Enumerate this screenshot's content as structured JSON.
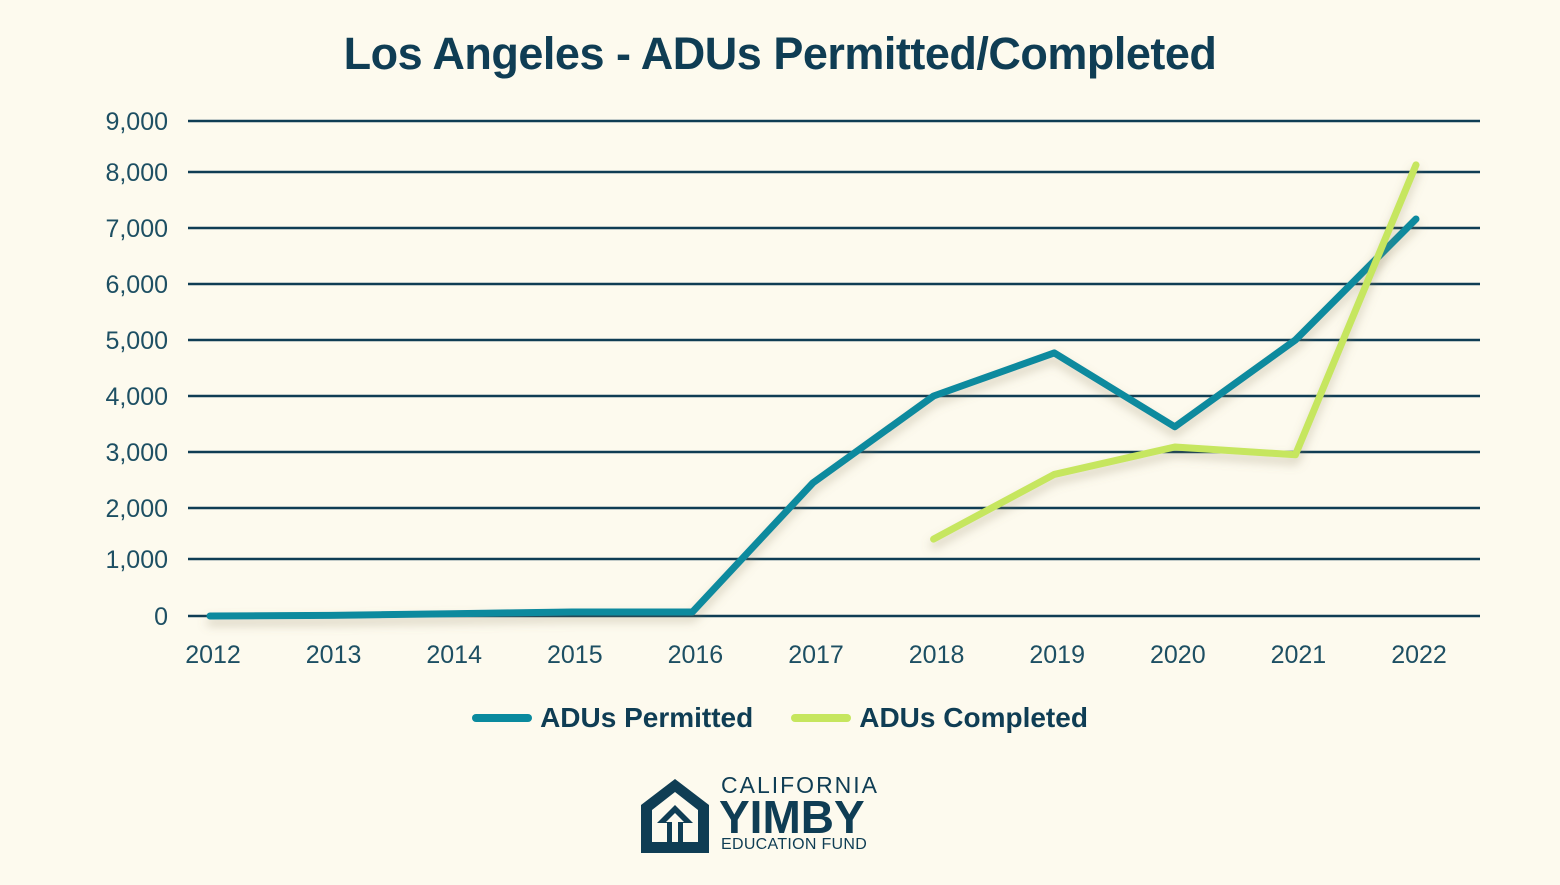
{
  "title": "Los Angeles - ADUs Permitted/Completed",
  "colors": {
    "background": "#fdfaee",
    "text": "#0f3d54",
    "gridline": "#0f3d54",
    "permitted": "#0a8a9e",
    "completed": "#c6e65e"
  },
  "legend": [
    {
      "label": "ADUs Permitted",
      "color": "#0a8a9e"
    },
    {
      "label": "ADUs Completed",
      "color": "#c6e65e"
    }
  ],
  "logo": {
    "line1": "CALIFORNIA",
    "line2": "YIMBY",
    "line3": "EDUCATION FUND",
    "icon": "house-arrow-icon"
  },
  "chart_data": {
    "type": "line",
    "title": "Los Angeles - ADUs Permitted/Completed",
    "xlabel": "",
    "ylabel": "",
    "x": [
      "2012",
      "2013",
      "2014",
      "2015",
      "2016",
      "2017",
      "2018",
      "2019",
      "2020",
      "2021",
      "2022"
    ],
    "y_ticks": [
      0,
      1000,
      2000,
      3000,
      4000,
      5000,
      6000,
      7000,
      8000,
      9000
    ],
    "y_tick_labels": [
      "0",
      "1,000",
      "2,000",
      "3,000",
      "4,000",
      "5,000",
      "6,000",
      "7,000",
      "8,000",
      "9,000"
    ],
    "ylim": [
      0,
      9000
    ],
    "grid": true,
    "legend_position": "bottom",
    "series": [
      {
        "name": "ADUs Permitted",
        "color": "#0a8a9e",
        "values": [
          0,
          10,
          40,
          70,
          70,
          2450,
          4000,
          4770,
          3450,
          5000,
          7160
        ]
      },
      {
        "name": "ADUs Completed",
        "color": "#c6e65e",
        "values": [
          null,
          null,
          null,
          null,
          null,
          null,
          1390,
          2600,
          3090,
          2950,
          8140
        ]
      }
    ]
  }
}
